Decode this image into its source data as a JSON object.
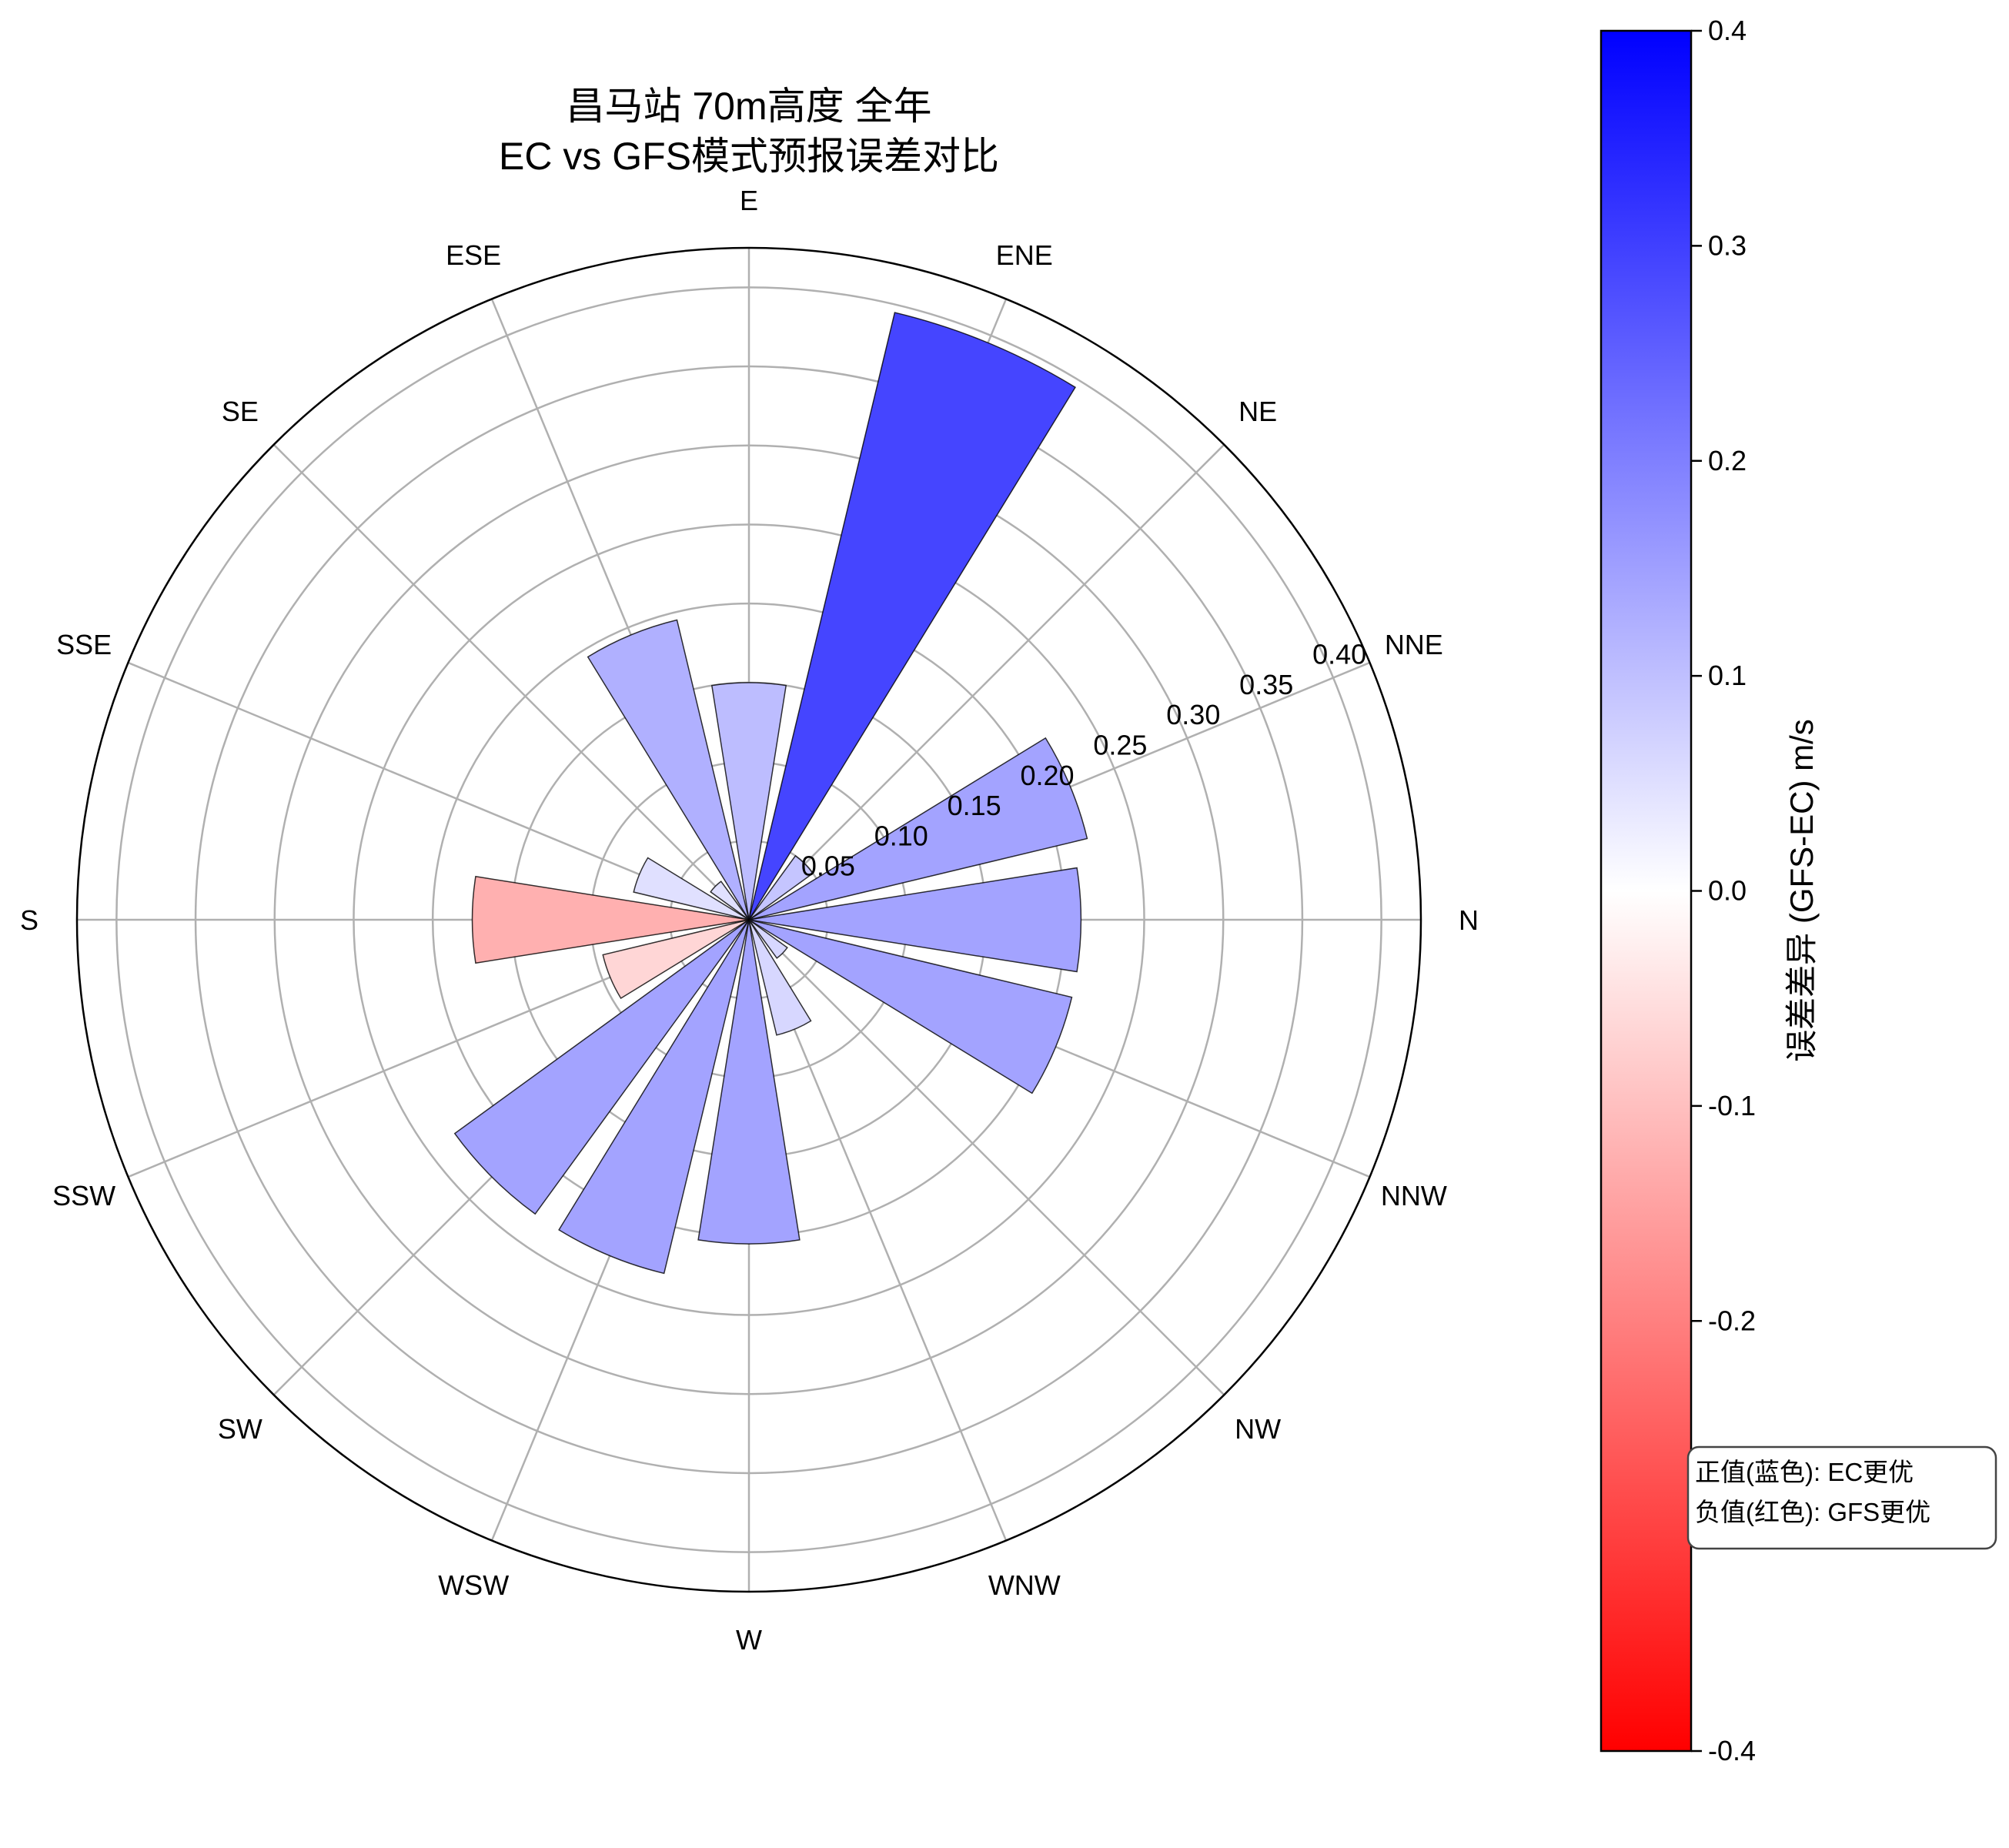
{
  "chart_data": {
    "type": "polar-bar",
    "title_line1": "昌马站 70m高度 全年",
    "title_line2": "EC vs GFS模式预报误差对比",
    "theta_zero": "N at right (east position)",
    "theta_direction": "counterclockwise",
    "directions": [
      "N",
      "NNE",
      "NE",
      "ENE",
      "E",
      "ESE",
      "SE",
      "SSE",
      "S",
      "SSW",
      "SW",
      "WSW",
      "W",
      "WNW",
      "NW",
      "NNW"
    ],
    "series": [
      {
        "values": [
          0.21,
          0.22,
          0.05,
          0.395,
          0.15,
          0.195,
          0.03,
          0.075,
          0.175,
          0.095,
          0.23,
          0.23,
          0.205,
          0.075,
          0.03,
          0.21
        ]
      }
    ],
    "r_ticks": [
      "0.05",
      "0.10",
      "0.15",
      "0.20",
      "0.25",
      "0.30",
      "0.35",
      "0.40"
    ],
    "r_tick_values": [
      0.05,
      0.1,
      0.15,
      0.2,
      0.25,
      0.3,
      0.35,
      0.4
    ],
    "r_max": 0.425,
    "colorbar": {
      "label": "误差差异 (GFS-EC) m/s",
      "range": [
        -0.4,
        0.4
      ],
      "ticks": [
        "-0.4",
        "-0.3",
        "-0.2",
        "-0.1",
        "0.0",
        "0.1",
        "0.2",
        "0.3",
        "0.4"
      ],
      "tick_values": [
        -0.4,
        -0.3,
        -0.2,
        -0.1,
        0.0,
        0.1,
        0.2,
        0.3,
        0.4
      ],
      "colors": {
        "negative": "#ff0000",
        "zero": "#ffffff",
        "positive": "#0000ff"
      }
    },
    "bar_colors": [
      "#a3a3ff",
      "#a3a3ff",
      "#c5c5ff",
      "#4545ff",
      "#bdbdff",
      "#b0b0ff",
      "#e0e0ff",
      "#e0e0ff",
      "#ffb0b0",
      "#ffd6d6",
      "#a3a3ff",
      "#a3a3ff",
      "#a3a3ff",
      "#d7d7ff",
      "#d7d7ff",
      "#a3a3ff"
    ],
    "grid": true,
    "note": {
      "line1": "正值(蓝色): EC更优",
      "line2": "负值(红色): GFS更优"
    }
  }
}
